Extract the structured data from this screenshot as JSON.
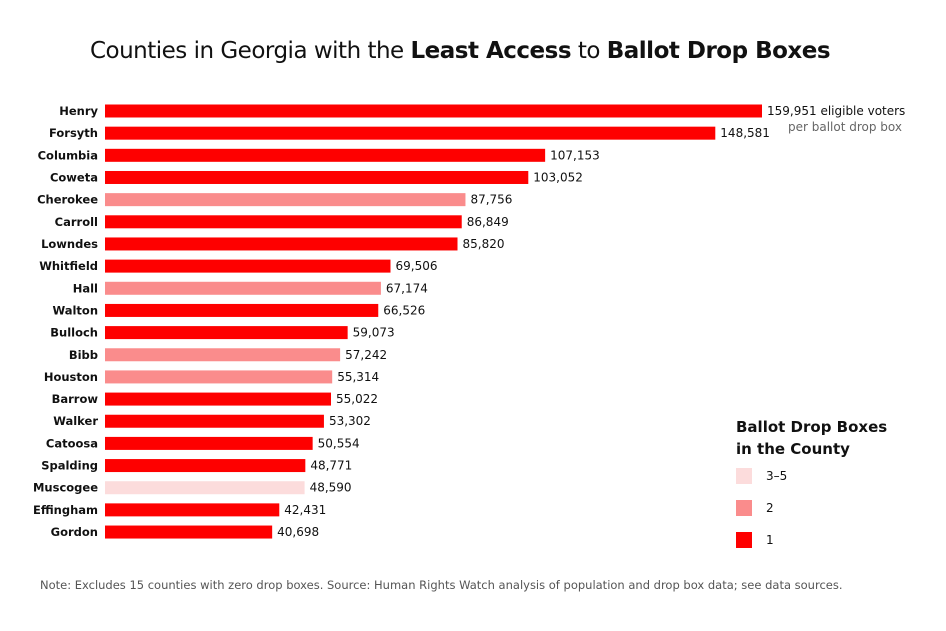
{
  "title": {
    "prefix": "Counties in Georgia with the ",
    "bold1": "Least Access",
    "mid": " to ",
    "bold2": "Ballot Drop Boxes"
  },
  "colors": {
    "1": "#fe0000",
    "2": "#fa8c8c",
    "3-5": "#fcdcdc"
  },
  "chart_data": {
    "type": "bar",
    "orientation": "horizontal",
    "categories": [
      "Henry",
      "Forsyth",
      "Columbia",
      "Coweta",
      "Cherokee",
      "Carroll",
      "Lowndes",
      "Whitfield",
      "Hall",
      "Walton",
      "Bulloch",
      "Bibb",
      "Houston",
      "Barrow",
      "Walker",
      "Catoosa",
      "Spalding",
      "Muscogee",
      "Effingham",
      "Gordon"
    ],
    "values": [
      159951,
      148581,
      107153,
      103052,
      87756,
      86849,
      85820,
      69506,
      67174,
      66526,
      59073,
      57242,
      55314,
      55022,
      53302,
      50554,
      48771,
      48590,
      42431,
      40698
    ],
    "value_labels": [
      "159,951",
      "148,581",
      "107,153",
      "103,052",
      "87,756",
      "86,849",
      "85,820",
      "69,506",
      "67,174",
      "66,526",
      "59,073",
      "57,242",
      "55,314",
      "55,022",
      "53,302",
      "50,554",
      "48,771",
      "48,590",
      "42,431",
      "40,698"
    ],
    "drop_boxes": [
      "1",
      "1",
      "1",
      "1",
      "2",
      "1",
      "1",
      "1",
      "2",
      "1",
      "1",
      "2",
      "2",
      "1",
      "1",
      "1",
      "1",
      "3-5",
      "1",
      "1"
    ],
    "first_label_suffix": " eligible voters",
    "first_label_sub": "per ballot drop box",
    "xlim": [
      0,
      159951
    ],
    "grid": false,
    "legend": {
      "title_line1": "Ballot Drop Boxes",
      "title_line2": "in the County",
      "position": "bottom-right",
      "items": [
        {
          "label": "3–5",
          "key": "3-5"
        },
        {
          "label": "2",
          "key": "2"
        },
        {
          "label": "1",
          "key": "1"
        }
      ]
    }
  },
  "note": "Note: Excludes 15 counties with zero drop boxes. Source: Human Rights Watch analysis of population and drop box data; see data sources."
}
